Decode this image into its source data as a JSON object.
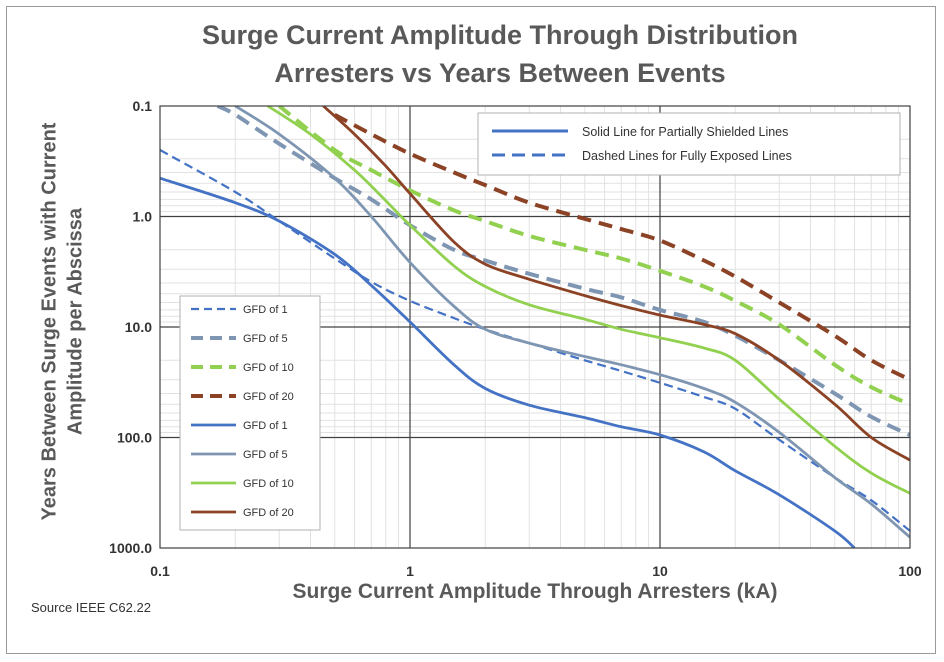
{
  "title_line1": "Surge Current Amplitude Through Distribution",
  "title_line2": "Arresters vs Years Between Events",
  "ylabel_line1": "Years Between Surge Events with Current",
  "ylabel_line2": "Amplitude per Abscissa",
  "xlabel": "Surge Current  Amplitude  Through  Arresters (kA)",
  "source": "Source IEEE C62.22",
  "chart_data": {
    "type": "line",
    "title": "Surge Current Amplitude Through Distribution Arresters vs Years Between Events",
    "xlabel": "Surge Current  Amplitude  Through  Arresters (kA)",
    "ylabel": "Years Between Surge Events with Current Amplitude per Abscissa",
    "x_scale": "log",
    "y_scale": "log",
    "y_inverted": true,
    "xlim": [
      0.1,
      100
    ],
    "ylim": [
      0.1,
      1000
    ],
    "x_ticks": [
      "0.1",
      "1",
      "10",
      "100"
    ],
    "y_ticks": [
      "0.1",
      "1.0",
      "10.0",
      "100.0",
      "1000.0"
    ],
    "grid": "major and minor",
    "top_legend": [
      {
        "label": "Solid Line for Partially Shielded Lines",
        "style": "solid"
      },
      {
        "label": "Dashed Lines for Fully Exposed Lines",
        "style": "dashed"
      }
    ],
    "legend_position": "left-middle",
    "series": [
      {
        "name": "GFD of 1",
        "style": "dashed",
        "color": "#4472c4",
        "points": [
          [
            0.1,
            0.25
          ],
          [
            0.2,
            0.6
          ],
          [
            0.3,
            1.1
          ],
          [
            0.5,
            2.4
          ],
          [
            0.7,
            3.9
          ],
          [
            1,
            5.8
          ],
          [
            1.5,
            8.3
          ],
          [
            2,
            10.5
          ],
          [
            3,
            14
          ],
          [
            5,
            20
          ],
          [
            7,
            25
          ],
          [
            10,
            32
          ],
          [
            15,
            43
          ],
          [
            20,
            55
          ],
          [
            30,
            105
          ],
          [
            50,
            230
          ],
          [
            70,
            370
          ],
          [
            100,
            700
          ]
        ]
      },
      {
        "name": "GFD of 5",
        "style": "dashed",
        "color": "#7f96b3",
        "points": [
          [
            0.17,
            0.1
          ],
          [
            0.2,
            0.12
          ],
          [
            0.3,
            0.22
          ],
          [
            0.5,
            0.45
          ],
          [
            0.7,
            0.7
          ],
          [
            1,
            1.2
          ],
          [
            1.5,
            2.0
          ],
          [
            2,
            2.5
          ],
          [
            3,
            3.3
          ],
          [
            5,
            4.5
          ],
          [
            7,
            5.4
          ],
          [
            10,
            7.0
          ],
          [
            15,
            9.0
          ],
          [
            20,
            12
          ],
          [
            30,
            20
          ],
          [
            50,
            40
          ],
          [
            70,
            65
          ],
          [
            100,
            95
          ]
        ]
      },
      {
        "name": "GFD of 10",
        "style": "dashed",
        "color": "#92d050",
        "points": [
          [
            0.3,
            0.1
          ],
          [
            0.5,
            0.25
          ],
          [
            0.7,
            0.38
          ],
          [
            1,
            0.58
          ],
          [
            1.5,
            0.88
          ],
          [
            2,
            1.1
          ],
          [
            3,
            1.5
          ],
          [
            5,
            2.0
          ],
          [
            7,
            2.4
          ],
          [
            10,
            3.1
          ],
          [
            15,
            4.3
          ],
          [
            20,
            5.8
          ],
          [
            30,
            9.5
          ],
          [
            50,
            22
          ],
          [
            70,
            35
          ],
          [
            100,
            50
          ]
        ]
      },
      {
        "name": "GFD of 20",
        "style": "dashed",
        "color": "#8b4225",
        "points": [
          [
            0.5,
            0.12
          ],
          [
            0.7,
            0.18
          ],
          [
            1,
            0.27
          ],
          [
            1.5,
            0.4
          ],
          [
            2,
            0.52
          ],
          [
            3,
            0.75
          ],
          [
            5,
            1.05
          ],
          [
            7,
            1.3
          ],
          [
            10,
            1.65
          ],
          [
            15,
            2.5
          ],
          [
            20,
            3.5
          ],
          [
            30,
            6.0
          ],
          [
            50,
            12
          ],
          [
            70,
            20
          ],
          [
            100,
            30
          ]
        ]
      },
      {
        "name": "GFD of 1",
        "style": "solid",
        "color": "#4472c4",
        "points": [
          [
            0.1,
            0.45
          ],
          [
            0.2,
            0.75
          ],
          [
            0.3,
            1.1
          ],
          [
            0.5,
            2.2
          ],
          [
            0.7,
            4.2
          ],
          [
            1,
            9.0
          ],
          [
            1.5,
            22
          ],
          [
            2,
            36
          ],
          [
            3,
            51
          ],
          [
            5,
            66
          ],
          [
            7,
            80
          ],
          [
            10,
            95
          ],
          [
            15,
            135
          ],
          [
            20,
            200
          ],
          [
            30,
            330
          ],
          [
            50,
            700
          ],
          [
            60,
            1000
          ]
        ]
      },
      {
        "name": "GFD of 5",
        "style": "solid",
        "color": "#7f96b3",
        "points": [
          [
            0.2,
            0.1
          ],
          [
            0.3,
            0.18
          ],
          [
            0.5,
            0.45
          ],
          [
            0.7,
            1.0
          ],
          [
            1,
            2.6
          ],
          [
            1.5,
            6.5
          ],
          [
            2,
            10.5
          ],
          [
            3,
            14
          ],
          [
            5,
            18.5
          ],
          [
            7,
            22
          ],
          [
            10,
            27
          ],
          [
            15,
            36
          ],
          [
            20,
            48
          ],
          [
            30,
            90
          ],
          [
            50,
            230
          ],
          [
            70,
            400
          ],
          [
            100,
            800
          ]
        ]
      },
      {
        "name": "GFD of 10",
        "style": "solid",
        "color": "#92d050",
        "points": [
          [
            0.27,
            0.1
          ],
          [
            0.4,
            0.18
          ],
          [
            0.6,
            0.38
          ],
          [
            0.8,
            0.72
          ],
          [
            1,
            1.2
          ],
          [
            1.5,
            2.8
          ],
          [
            2,
            4.3
          ],
          [
            3,
            6.3
          ],
          [
            5,
            8.5
          ],
          [
            7,
            10.5
          ],
          [
            10,
            12.5
          ],
          [
            15,
            15.5
          ],
          [
            20,
            20
          ],
          [
            30,
            45
          ],
          [
            50,
            120
          ],
          [
            70,
            210
          ],
          [
            100,
            320
          ]
        ]
      },
      {
        "name": "GFD of 20",
        "style": "solid",
        "color": "#8b4225",
        "points": [
          [
            0.45,
            0.1
          ],
          [
            0.6,
            0.18
          ],
          [
            0.8,
            0.35
          ],
          [
            1,
            0.62
          ],
          [
            1.5,
            1.7
          ],
          [
            2,
            2.7
          ],
          [
            3,
            3.7
          ],
          [
            5,
            5.2
          ],
          [
            7,
            6.4
          ],
          [
            10,
            7.8
          ],
          [
            15,
            9.5
          ],
          [
            20,
            11.5
          ],
          [
            30,
            20
          ],
          [
            50,
            50
          ],
          [
            70,
            100
          ],
          [
            100,
            160
          ]
        ]
      }
    ]
  }
}
